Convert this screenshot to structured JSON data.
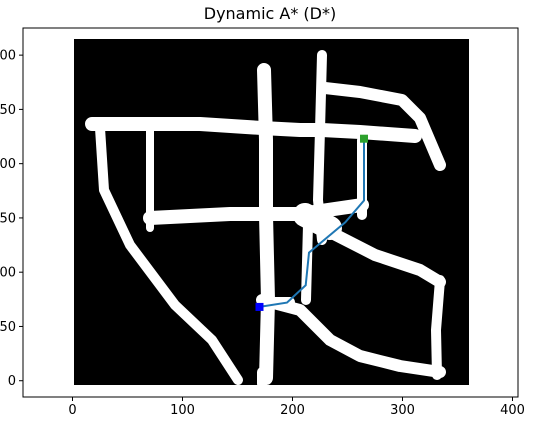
{
  "chart_data": {
    "type": "line",
    "title": "Dynamic A* (D*)",
    "xlabel": "",
    "ylabel": "",
    "xlim": [
      -45,
      405
    ],
    "ylim": [
      -15,
      325
    ],
    "y_inverted": true,
    "grid": false,
    "legend": "none",
    "x_ticks": [
      0,
      100,
      200,
      300,
      400
    ],
    "x_tick_labels": [
      "0",
      "100",
      "200",
      "300",
      "400"
    ],
    "y_ticks": [
      0,
      50,
      100,
      150,
      200,
      250,
      300
    ],
    "y_tick_labels": [
      "0",
      "50",
      "100",
      "150",
      "200",
      "250",
      "300"
    ],
    "background": "occupancy map (black = obstacle, white = free)",
    "series": [
      {
        "color": "#1f77b4",
        "x": [
          170,
          195,
          212,
          215,
          248,
          265,
          265
        ],
        "y": [
          68,
          72,
          88,
          118,
          146,
          166,
          223
        ]
      }
    ],
    "start": {
      "x": 170,
      "y": 68,
      "color": "#0000ff"
    },
    "goal": {
      "x": 265,
      "y": 223,
      "color": "#2ca02c"
    }
  }
}
